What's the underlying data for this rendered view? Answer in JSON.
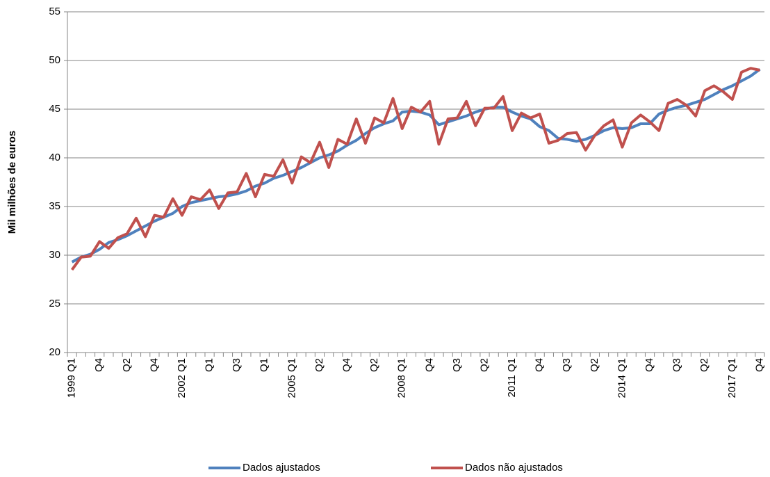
{
  "chart_data": {
    "type": "line",
    "y_label": "Mil milhões de euros",
    "categories": [
      "1999 Q1",
      null,
      null,
      "Q4",
      null,
      null,
      "Q2",
      null,
      null,
      "Q4",
      null,
      null,
      "2002 Q1",
      null,
      null,
      "Q1",
      null,
      null,
      "Q3",
      null,
      null,
      "Q1",
      null,
      null,
      "2005 Q1",
      null,
      null,
      "Q2",
      null,
      null,
      "Q4",
      null,
      null,
      "Q2",
      null,
      null,
      "2008 Q1",
      null,
      null,
      "Q4",
      null,
      null,
      "Q3",
      null,
      null,
      "Q2",
      null,
      null,
      "2011 Q1",
      null,
      null,
      "Q4",
      null,
      null,
      "Q3",
      null,
      null,
      "Q2",
      null,
      null,
      "2014 Q1",
      null,
      null,
      "Q4",
      null,
      null,
      "Q3",
      null,
      null,
      "Q2",
      null,
      null,
      "2017 Q1",
      null,
      null,
      "Q4"
    ],
    "series": [
      {
        "name": "Dados ajustados",
        "color": "#4f81bd",
        "values": [
          29.3,
          29.8,
          30.1,
          30.6,
          31.3,
          31.6,
          32.0,
          32.5,
          33.0,
          33.5,
          33.9,
          34.3,
          35.0,
          35.4,
          35.6,
          35.8,
          36.0,
          36.1,
          36.3,
          36.6,
          37.1,
          37.4,
          37.9,
          38.2,
          38.6,
          39.0,
          39.5,
          40.0,
          40.3,
          40.7,
          41.3,
          41.8,
          42.5,
          43.1,
          43.5,
          43.8,
          44.7,
          44.8,
          44.7,
          44.4,
          43.4,
          43.7,
          44.0,
          44.3,
          44.7,
          45.0,
          45.2,
          45.2,
          44.7,
          44.3,
          44.0,
          43.2,
          42.8,
          42.0,
          41.9,
          41.7,
          41.9,
          42.3,
          42.8,
          43.1,
          43.0,
          43.1,
          43.5,
          43.5,
          44.5,
          44.9,
          45.2,
          45.4,
          45.7,
          46.0,
          46.5,
          47.0,
          47.4,
          47.9,
          48.4,
          49.1
        ]
      },
      {
        "name": "Dados não ajustados",
        "color": "#c0504d",
        "values": [
          28.5,
          29.8,
          29.9,
          31.4,
          30.7,
          31.8,
          32.2,
          33.8,
          31.9,
          34.1,
          33.9,
          35.8,
          34.1,
          36.0,
          35.7,
          36.7,
          34.8,
          36.4,
          36.5,
          38.4,
          36.0,
          38.3,
          38.1,
          39.8,
          37.4,
          40.1,
          39.5,
          41.6,
          39.0,
          41.9,
          41.4,
          44.0,
          41.5,
          44.1,
          43.6,
          46.1,
          43.0,
          45.2,
          44.7,
          45.8,
          41.4,
          44.0,
          44.1,
          45.8,
          43.3,
          45.1,
          45.1,
          46.3,
          42.8,
          44.6,
          44.1,
          44.5,
          41.5,
          41.8,
          42.5,
          42.6,
          40.8,
          42.3,
          43.3,
          43.9,
          41.1,
          43.6,
          44.4,
          43.7,
          42.8,
          45.6,
          46.0,
          45.4,
          44.3,
          46.9,
          47.4,
          46.8,
          46.0,
          48.8,
          49.2,
          49.0
        ]
      }
    ],
    "ylim": [
      20,
      55
    ],
    "yticks": [
      20,
      25,
      30,
      35,
      40,
      45,
      50,
      55
    ],
    "grid": true,
    "legend": "bottom"
  }
}
